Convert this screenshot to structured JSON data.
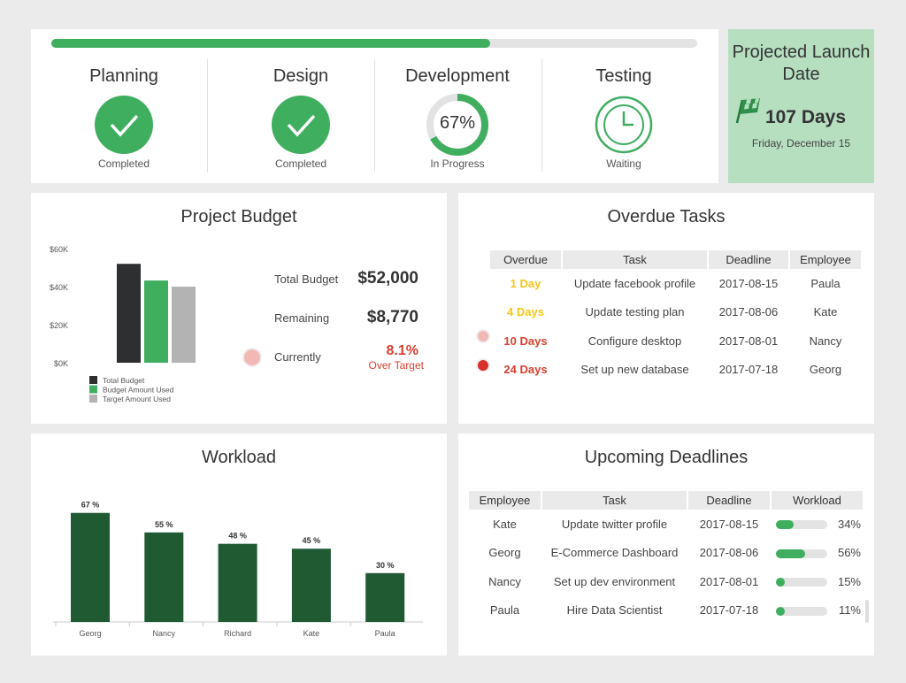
{
  "progress": {
    "percent": 68,
    "color": "#3fae5f"
  },
  "stages": [
    {
      "name": "Planning",
      "status": "Completed",
      "icon": "check-circle-icon"
    },
    {
      "name": "Design",
      "status": "Completed",
      "icon": "check-circle-icon"
    },
    {
      "name": "Development",
      "status": "In Progress",
      "percent_label": "67%",
      "percent": 67,
      "icon": "progress-ring-icon"
    },
    {
      "name": "Testing",
      "status": "Waiting",
      "icon": "clock-icon"
    }
  ],
  "launch": {
    "title": "Projected Launch Date",
    "days": "107 Days",
    "date": "Friday, December 15",
    "icon": "checkered-flag-icon",
    "bg": "#b6dfc0"
  },
  "budget": {
    "title": "Project Budget",
    "total_label": "Total Budget",
    "total_value": "$52,000",
    "remaining_label": "Remaining",
    "remaining_value": "$8,770",
    "currently_label": "Currently",
    "currently_value": "8.1%",
    "currently_note": "Over Target"
  },
  "chart_data": [
    {
      "type": "bar",
      "title": "",
      "y_ticks": [
        "$60K",
        "$40K",
        "$20K",
        "$0K"
      ],
      "ylim": [
        0,
        60000
      ],
      "series": [
        {
          "name": "Total Budget",
          "value": 52000,
          "color": "#2d2f30"
        },
        {
          "name": "Budget Amount Used",
          "value": 43230,
          "color": "#3fae5f"
        },
        {
          "name": "Target Amount Used",
          "value": 40000,
          "color": "#b3b3b3"
        }
      ],
      "legend": "bottom-left"
    },
    {
      "type": "bar",
      "title": "Workload",
      "categories": [
        "Georg",
        "Nancy",
        "Richard",
        "Kate",
        "Paula"
      ],
      "values": [
        67,
        55,
        48,
        45,
        30
      ],
      "labels": [
        "67 %",
        "55 %",
        "48 %",
        "45 %",
        "30 %"
      ],
      "ylim": [
        0,
        75
      ],
      "color": "#1f5a32"
    }
  ],
  "overdue": {
    "title": "Overdue Tasks",
    "headers": [
      "Overdue",
      "Task",
      "Deadline",
      "Employee"
    ],
    "rows": [
      {
        "overdue": "1 Day",
        "task": "Update facebook profile",
        "deadline": "2017-08-15",
        "employee": "Paula",
        "color": "#f5c518",
        "dot": ""
      },
      {
        "overdue": "4 Days",
        "task": "Update testing plan",
        "deadline": "2017-08-06",
        "employee": "Kate",
        "color": "#f5c518",
        "dot": ""
      },
      {
        "overdue": "10 Days",
        "task": "Configure desktop",
        "deadline": "2017-08-01",
        "employee": "Nancy",
        "color": "#d9412e",
        "dot": "#f2b8b5"
      },
      {
        "overdue": "24 Days",
        "task": "Set up new database",
        "deadline": "2017-07-18",
        "employee": "Georg",
        "color": "#d9412e",
        "dot": "#d9302a"
      }
    ]
  },
  "upcoming": {
    "title": "Upcoming Deadlines",
    "headers": [
      "Employee",
      "Task",
      "Deadline",
      "Workload"
    ],
    "rows": [
      {
        "employee": "Kate",
        "task": "Update twitter profile",
        "deadline": "2017-08-15",
        "workload": 34,
        "workload_label": "34%"
      },
      {
        "employee": "Georg",
        "task": "E-Commerce Dashboard",
        "deadline": "2017-08-06",
        "workload": 56,
        "workload_label": "56%"
      },
      {
        "employee": "Nancy",
        "task": "Set up dev environment",
        "deadline": "2017-08-01",
        "workload": 15,
        "workload_label": "15%"
      },
      {
        "employee": "Paula",
        "task": "Hire Data Scientist",
        "deadline": "2017-07-18",
        "workload": 11,
        "workload_label": "11%"
      }
    ]
  }
}
